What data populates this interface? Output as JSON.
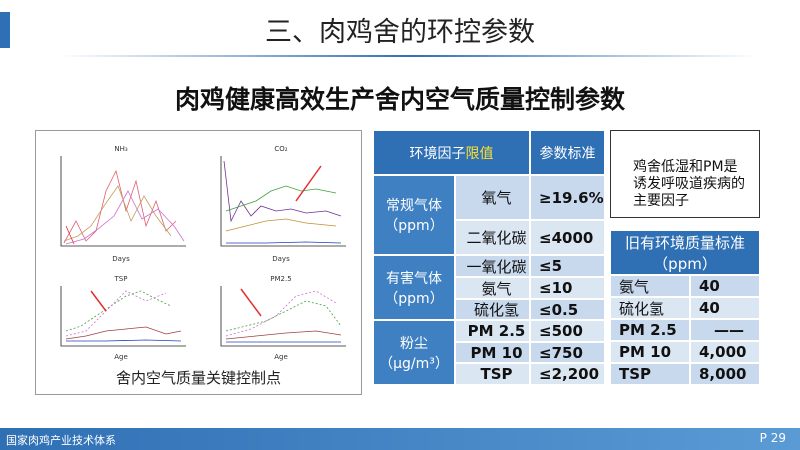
{
  "header": {
    "title": "三、肉鸡舍的环控参数",
    "subtitle": "肉鸡健康高效生产舍内空气质量控制参数"
  },
  "figure": {
    "caption": "舍内空气质量关键控制点",
    "charts": [
      {
        "title": "NH₃",
        "xlabel": "Days"
      },
      {
        "title": "CO₂",
        "xlabel": "Days"
      },
      {
        "title": "TSP",
        "xlabel": "Age"
      },
      {
        "title": "PM2.5",
        "xlabel": "Age"
      }
    ]
  },
  "table": {
    "header": [
      "环境因子",
      "限值",
      "参数标准"
    ],
    "groups": [
      {
        "name": "常规气体（ppm）",
        "rows": [
          [
            "氧气",
            "≥19.6%"
          ],
          [
            "二氧化碳",
            "≤4000"
          ]
        ]
      },
      {
        "name": "有害气体（ppm）",
        "rows": [
          [
            "一氧化碳",
            "≤5"
          ],
          [
            "氨气",
            "≤10"
          ],
          [
            "硫化氢",
            "≤0.5"
          ]
        ]
      },
      {
        "name": "粉尘（μg/m³）",
        "rows": [
          [
            "PM 2.5",
            "≤500"
          ],
          [
            "PM 10",
            "≤750"
          ],
          [
            "TSP",
            "≤2,200"
          ]
        ]
      }
    ]
  },
  "note": "鸡舍低湿和PM是诱发呼吸道疾病的主要因子",
  "old_table": {
    "header": "旧有环境质量标准（ppm）",
    "rows": [
      [
        "氨气",
        "40"
      ],
      [
        "硫化氢",
        "40"
      ],
      [
        "PM 2.5",
        "——"
      ],
      [
        "PM 10",
        "4,000"
      ],
      [
        "TSP",
        "8,000"
      ]
    ]
  },
  "footer": {
    "org": "国家肉鸡产业技术体系",
    "page": "P 29"
  }
}
